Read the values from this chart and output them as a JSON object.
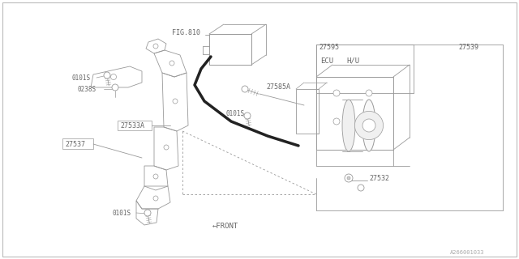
{
  "bg_color": "#ffffff",
  "line_color": "#999999",
  "dark_line_color": "#666666",
  "fig_width": 6.4,
  "fig_height": 3.2,
  "dpi": 100,
  "labels": {
    "fig810": "FIG.810",
    "27595": "27595",
    "27539": "27539",
    "27585A": "27585A",
    "ecu": "ECU",
    "hu": "H/U",
    "27533A": "27533A",
    "27537": "27537",
    "27532": "27532",
    "0101S_top": "0101S",
    "0238S": "0238S",
    "0101S_mid": "0101S",
    "0101S_bot": "0101S",
    "front": "←FRONT",
    "part_num": "A266001033"
  },
  "font_size_label": 6,
  "font_size_part": 5.5,
  "font_size_small": 5
}
